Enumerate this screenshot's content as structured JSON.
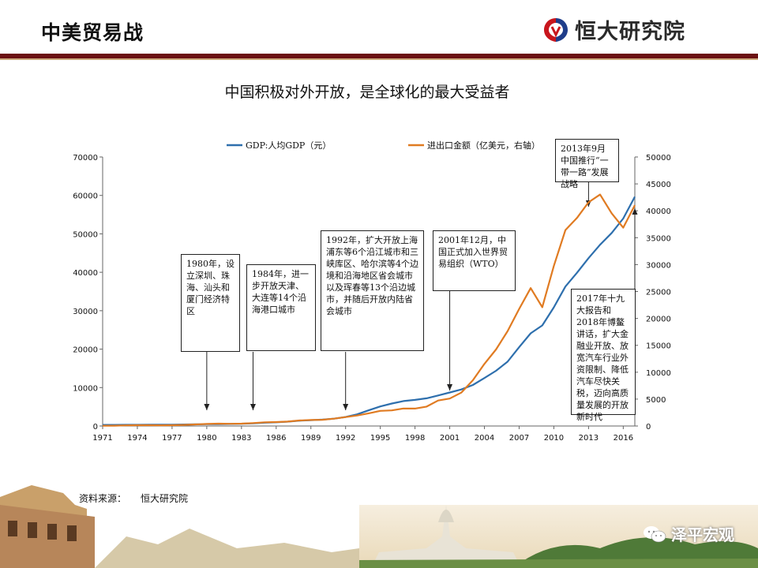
{
  "header": {
    "title": "中美贸易战",
    "brand": "恒大研究院"
  },
  "subtitle": "中国积极对外开放，是全球化的最大受益者",
  "source": {
    "label": "资料来源：",
    "value": "恒大研究院"
  },
  "watermark": "泽平宏观",
  "annotations": [
    {
      "id": "a1980",
      "text": "1980年，设立深圳、珠海、汕头和厦门经济特区"
    },
    {
      "id": "a1984",
      "text": "1984年，进一步开放天津、大连等14个沿海港口城市"
    },
    {
      "id": "a1992",
      "text": "1992年，扩大开放上海浦东等6个沿江城市和三峡库区、哈尔滨等4个边境和沿海地区省会城市以及珲春等13个沿边城市，并随后开放内陆省会城市"
    },
    {
      "id": "a2001",
      "text": "2001年12月，中国正式加入世界贸易组织（WTO）"
    },
    {
      "id": "a2013",
      "text": "2013年9月中国推行“一带一路”发展战略"
    },
    {
      "id": "a2017",
      "text": "2017年十九大报告和2018年博鳌讲话，扩大金融业开放、放宽汽车行业外资限制、降低汽车尽快关税，迈向高质量发展的开放新时代"
    }
  ],
  "colors": {
    "gdp": "#2e6fad",
    "trade": "#e07b22",
    "bar": "#6b1013"
  },
  "chart_data": {
    "type": "line",
    "legend_placement": "top",
    "grid": false,
    "x": [
      1971,
      1972,
      1973,
      1974,
      1975,
      1976,
      1977,
      1978,
      1979,
      1980,
      1981,
      1982,
      1983,
      1984,
      1985,
      1986,
      1987,
      1988,
      1989,
      1990,
      1991,
      1992,
      1993,
      1994,
      1995,
      1996,
      1997,
      1998,
      1999,
      2000,
      2001,
      2002,
      2003,
      2004,
      2005,
      2006,
      2007,
      2008,
      2009,
      2010,
      2011,
      2012,
      2013,
      2014,
      2015,
      2016,
      2017
    ],
    "x_ticks": [
      "1971",
      "1974",
      "1977",
      "1980",
      "1983",
      "1986",
      "1989",
      "1992",
      "1995",
      "1998",
      "2001",
      "2004",
      "2007",
      "2010",
      "2013",
      "2016"
    ],
    "y_left": {
      "ylim": [
        0,
        70000
      ],
      "ticks": [
        "0",
        "10000",
        "20000",
        "30000",
        "40000",
        "50000",
        "60000",
        "70000"
      ]
    },
    "y_right": {
      "ylim": [
        0,
        50000
      ],
      "ticks": [
        "0",
        "5000",
        "10000",
        "15000",
        "20000",
        "25000",
        "30000",
        "35000",
        "40000",
        "45000",
        "50000"
      ]
    },
    "series": [
      {
        "name": "GDP:人均GDP（元）",
        "axis": "left",
        "values": [
          280,
          286,
          300,
          310,
          325,
          330,
          355,
          385,
          425,
          470,
          495,
          530,
          590,
          700,
          860,
          960,
          1120,
          1370,
          1520,
          1660,
          1910,
          2330,
          3030,
          4080,
          5090,
          5850,
          6480,
          6800,
          7200,
          7940,
          8720,
          9510,
          10670,
          12490,
          14370,
          16740,
          20500,
          24120,
          26180,
          30880,
          36300,
          39870,
          43680,
          47170,
          50240,
          53980,
          59660
        ]
      },
      {
        "name": "进出口金额（亿美元，右轴）",
        "axis": "right",
        "values": [
          48,
          63,
          110,
          146,
          148,
          134,
          148,
          206,
          293,
          381,
          440,
          416,
          436,
          536,
          696,
          738,
          827,
          1028,
          1117,
          1154,
          1357,
          1655,
          1957,
          2366,
          2809,
          2899,
          3252,
          3240,
          3606,
          4743,
          5097,
          6208,
          8510,
          11546,
          14219,
          17604,
          21762,
          25633,
          22075,
          29740,
          36419,
          38671,
          41590,
          43015,
          39530,
          36856,
          41045
        ]
      }
    ]
  }
}
